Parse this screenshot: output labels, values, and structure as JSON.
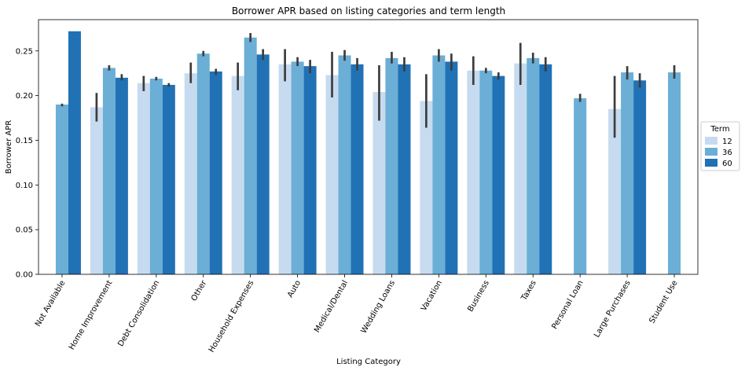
{
  "chart_data": {
    "type": "bar",
    "title": "Borrower APR based on listing categories and term length",
    "xlabel": "Listing Category",
    "ylabel": "Borrower APR",
    "ylim": [
      0,
      0.285
    ],
    "yticks": [
      "0.00",
      "0.05",
      "0.10",
      "0.15",
      "0.20",
      "0.25"
    ],
    "ytick_values": [
      0,
      0.05,
      0.1,
      0.15,
      0.2,
      0.25
    ],
    "categories": [
      "Not Available",
      "Home Improvement",
      "Debt Consolidation",
      "Other",
      "Household Expenses",
      "Auto",
      "Medical/Dental",
      "Wedding Loans",
      "Vacation",
      "Business",
      "Taxes",
      "Personal Loan",
      "Large Purchases",
      "Student Use"
    ],
    "legend": {
      "title": "Term",
      "placement": "center-right"
    },
    "series": [
      {
        "name": "12",
        "color": "#c6dbef",
        "values": [
          null,
          0.187,
          0.214,
          0.225,
          0.222,
          0.235,
          0.223,
          0.204,
          0.194,
          0.228,
          0.236,
          null,
          0.185,
          null
        ],
        "err_low": [
          null,
          0.171,
          0.205,
          0.214,
          0.206,
          0.216,
          0.198,
          0.172,
          0.164,
          0.212,
          0.212,
          null,
          0.153,
          null
        ],
        "err_high": [
          null,
          0.203,
          0.222,
          0.237,
          0.237,
          0.252,
          0.249,
          0.234,
          0.224,
          0.244,
          0.259,
          null,
          0.222,
          null
        ]
      },
      {
        "name": "36",
        "color": "#6baed6",
        "values": [
          0.19,
          0.231,
          0.219,
          0.247,
          0.265,
          0.238,
          0.245,
          0.242,
          0.245,
          0.228,
          0.242,
          0.197,
          0.226,
          0.226
        ],
        "err_low": [
          0.188,
          0.228,
          0.217,
          0.244,
          0.26,
          0.233,
          0.239,
          0.236,
          0.238,
          0.225,
          0.236,
          0.193,
          0.218,
          0.219
        ],
        "err_high": [
          0.191,
          0.234,
          0.221,
          0.25,
          0.27,
          0.243,
          0.251,
          0.249,
          0.252,
          0.231,
          0.248,
          0.202,
          0.233,
          0.234
        ]
      },
      {
        "name": "60",
        "color": "#2171b5",
        "values": [
          0.272,
          0.22,
          0.212,
          0.227,
          0.246,
          0.233,
          0.235,
          0.235,
          0.238,
          0.222,
          0.235,
          null,
          0.217,
          null
        ],
        "err_low": [
          null,
          0.217,
          0.21,
          0.223,
          0.24,
          0.225,
          0.228,
          0.227,
          0.228,
          0.218,
          0.227,
          null,
          0.209,
          null
        ],
        "err_high": [
          null,
          0.224,
          0.214,
          0.23,
          0.252,
          0.24,
          0.242,
          0.243,
          0.247,
          0.226,
          0.243,
          null,
          0.225,
          null
        ]
      }
    ]
  }
}
